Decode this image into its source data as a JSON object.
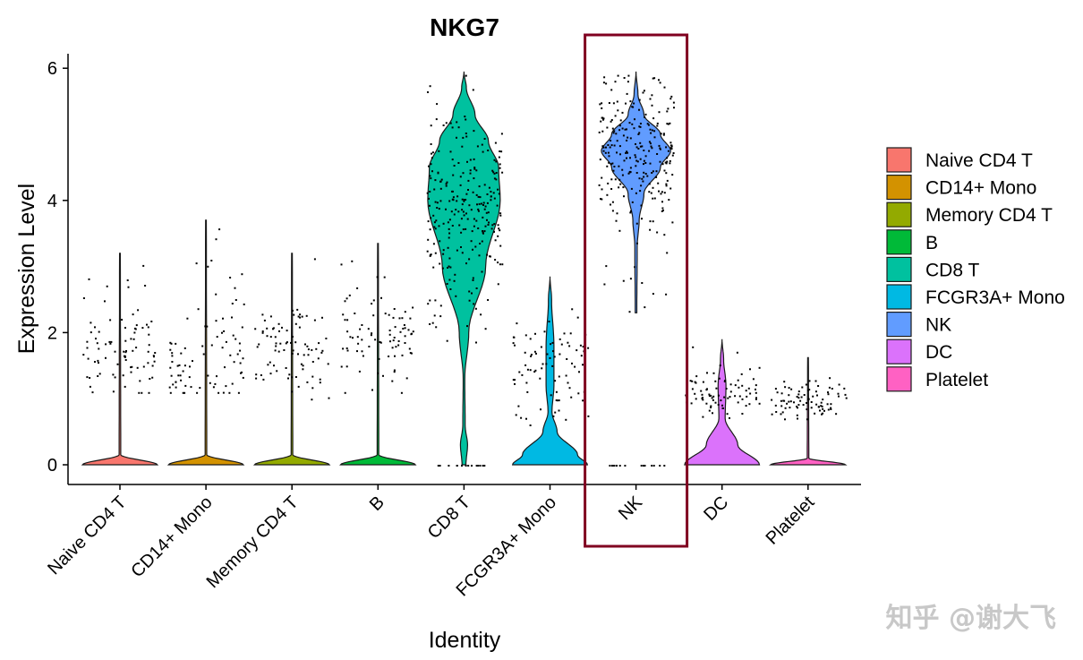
{
  "chart_data": {
    "type": "violin",
    "title": "NKG7",
    "xlabel": "Identity",
    "ylabel": "Expression Level",
    "ylim": [
      -0.3,
      6.5
    ],
    "yticks": [
      0,
      2,
      4,
      6
    ],
    "categories": [
      "Naive CD4 T",
      "CD14+ Mono",
      "Memory CD4 T",
      "B",
      "CD8 T",
      "FCGR3A+ Mono",
      "NK",
      "DC",
      "Platelet"
    ],
    "colors": [
      "#F8766D",
      "#D39200",
      "#93AA00",
      "#00BA38",
      "#00C19F",
      "#00B9E3",
      "#619CFF",
      "#DB72FB",
      "#FF61C3"
    ],
    "series": [
      {
        "name": "Naive CD4 T",
        "max": 3.2,
        "median": 0,
        "dot_min": 1.1,
        "dot_max": 3.2,
        "dot_center": 1.7,
        "profile": [
          [
            0,
            0.95
          ],
          [
            0.15,
            0.02
          ],
          [
            3.2,
            0.01
          ]
        ]
      },
      {
        "name": "CD14+ Mono",
        "max": 3.7,
        "median": 0,
        "dot_min": 1.1,
        "dot_max": 3.7,
        "dot_center": 1.6,
        "profile": [
          [
            0,
            0.95
          ],
          [
            0.15,
            0.02
          ],
          [
            3.7,
            0.01
          ]
        ]
      },
      {
        "name": "Memory CD4 T",
        "max": 3.2,
        "median": 0,
        "dot_min": 1.0,
        "dot_max": 3.2,
        "dot_center": 1.7,
        "profile": [
          [
            0,
            0.95
          ],
          [
            0.15,
            0.02
          ],
          [
            3.2,
            0.01
          ]
        ]
      },
      {
        "name": "B",
        "max": 3.35,
        "median": 0,
        "dot_min": 1.1,
        "dot_max": 3.35,
        "dot_center": 1.9,
        "profile": [
          [
            0,
            0.95
          ],
          [
            0.15,
            0.02
          ],
          [
            3.35,
            0.01
          ]
        ]
      },
      {
        "name": "CD8 T",
        "max": 5.95,
        "median": 3.8,
        "dot_min": 1.6,
        "dot_max": 5.9,
        "dot_center": 3.9,
        "profile": [
          [
            0,
            0.05
          ],
          [
            0.3,
            0.09
          ],
          [
            0.6,
            0.03
          ],
          [
            1.3,
            0.02
          ],
          [
            2.0,
            0.12
          ],
          [
            3.0,
            0.55
          ],
          [
            4.0,
            0.92
          ],
          [
            4.5,
            0.88
          ],
          [
            4.9,
            0.62
          ],
          [
            5.3,
            0.28
          ],
          [
            5.7,
            0.06
          ],
          [
            5.95,
            0
          ]
        ]
      },
      {
        "name": "FCGR3A+ Mono",
        "max": 2.85,
        "median": 0,
        "dot_min": 0.5,
        "dot_max": 2.8,
        "dot_center": 1.5,
        "profile": [
          [
            0,
            0.95
          ],
          [
            0.15,
            0.7
          ],
          [
            0.5,
            0.18
          ],
          [
            0.8,
            0.05
          ],
          [
            1.2,
            0.1
          ],
          [
            1.8,
            0.1
          ],
          [
            2.5,
            0.04
          ],
          [
            2.85,
            0
          ]
        ]
      },
      {
        "name": "NK",
        "max": 5.95,
        "median": 4.7,
        "dot_min": 2.3,
        "dot_max": 5.9,
        "dot_center": 4.7,
        "profile": [
          [
            2.3,
            0.02
          ],
          [
            3.3,
            0.03
          ],
          [
            3.7,
            0.08
          ],
          [
            4.1,
            0.2
          ],
          [
            4.5,
            0.62
          ],
          [
            4.75,
            0.88
          ],
          [
            5.0,
            0.62
          ],
          [
            5.3,
            0.2
          ],
          [
            5.6,
            0.05
          ],
          [
            5.95,
            0
          ]
        ]
      },
      {
        "name": "DC",
        "max": 1.9,
        "median": 0,
        "dot_min": 0.6,
        "dot_max": 1.9,
        "dot_center": 1.1,
        "profile": [
          [
            0,
            0.95
          ],
          [
            0.3,
            0.4
          ],
          [
            0.7,
            0.08
          ],
          [
            1.2,
            0.1
          ],
          [
            1.6,
            0.04
          ],
          [
            1.9,
            0
          ]
        ]
      },
      {
        "name": "Platelet",
        "max": 1.62,
        "median": 0,
        "dot_min": 0.7,
        "dot_max": 1.62,
        "dot_center": 1.0,
        "profile": [
          [
            0,
            0.95
          ],
          [
            0.1,
            0.02
          ],
          [
            1.62,
            0.01
          ]
        ]
      }
    ],
    "legend": {
      "position": "right"
    },
    "highlight": {
      "category": "NK",
      "color": "#800020"
    },
    "watermark": "知乎 @谢大飞"
  }
}
